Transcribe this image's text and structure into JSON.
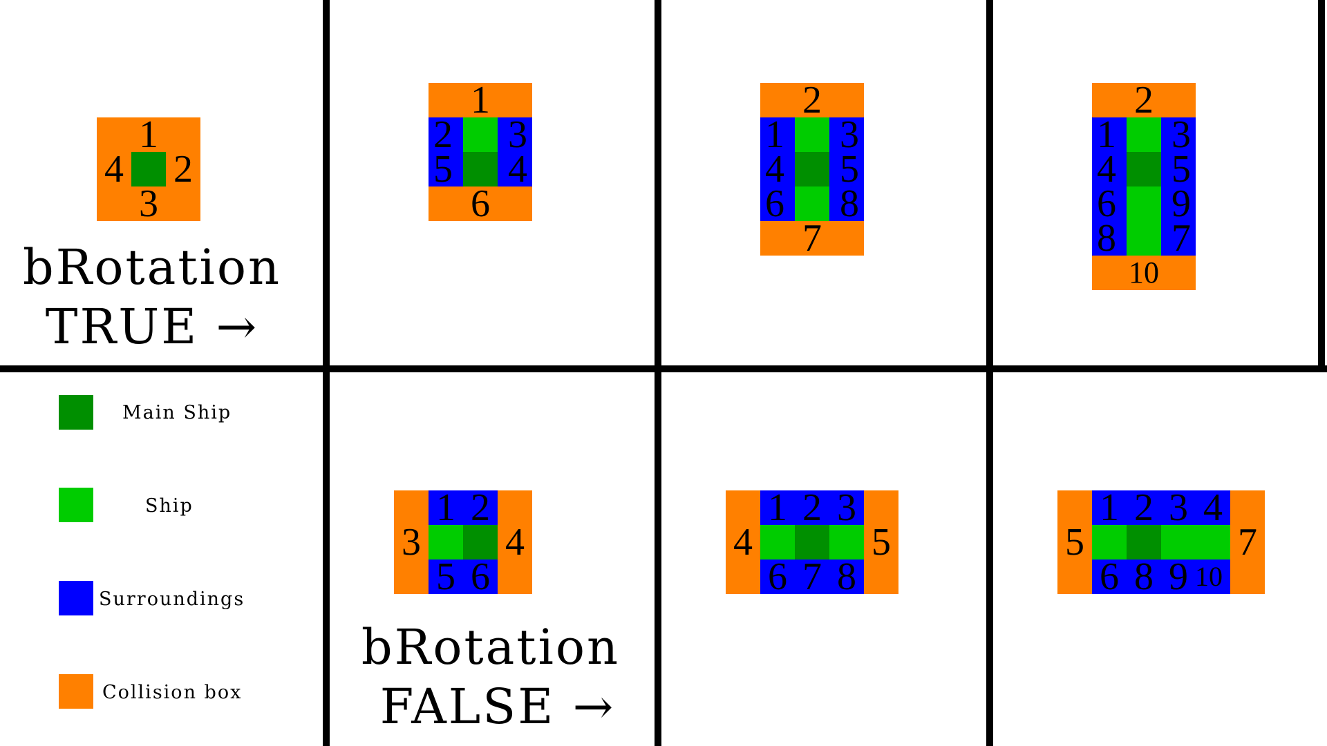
{
  "colors": {
    "main_ship": "#008f00",
    "ship": "#00cc00",
    "surroundings": "#0000ff",
    "collision_box": "#ff8000",
    "grid": "#000000",
    "background": "#ffffff"
  },
  "titles": {
    "rotation_true_line1": "bRotation",
    "rotation_true_line2": "TRUE →",
    "rotation_false_line1": "bRotation",
    "rotation_false_line2": "FALSE →"
  },
  "legend": [
    {
      "label": "Main Ship",
      "color_key": "main_ship",
      "icon": "square-swatch"
    },
    {
      "label": "Ship",
      "color_key": "ship",
      "icon": "square-swatch"
    },
    {
      "label": "Surroundings",
      "color_key": "surroundings",
      "icon": "square-swatch"
    },
    {
      "label": "Collision box",
      "color_key": "collision_box",
      "icon": "square-swatch"
    }
  ],
  "diagrams": [
    {
      "id": "rot-true-size1",
      "rotation": true,
      "ship_size": 1,
      "cells": [
        [
          "O",
          "O",
          "O"
        ],
        [
          "O",
          "M",
          "O"
        ],
        [
          "O",
          "O",
          "O"
        ]
      ],
      "labels": [
        "1",
        "4",
        "2",
        "3"
      ]
    },
    {
      "id": "rot-true-size2",
      "rotation": true,
      "ship_size": 2,
      "cells": [
        [
          "O",
          "O",
          "O"
        ],
        [
          "B",
          "S",
          "B"
        ],
        [
          "B",
          "M",
          "B"
        ],
        [
          "O",
          "O",
          "O"
        ]
      ],
      "labels": [
        "1",
        "2",
        "3",
        "5",
        "4",
        "6"
      ]
    },
    {
      "id": "rot-true-size3",
      "rotation": true,
      "ship_size": 3,
      "cells": [
        [
          "O",
          "O",
          "O"
        ],
        [
          "B",
          "S",
          "B"
        ],
        [
          "B",
          "M",
          "B"
        ],
        [
          "B",
          "S",
          "B"
        ],
        [
          "O",
          "O",
          "O"
        ]
      ],
      "labels": [
        "2",
        "1",
        "3",
        "4",
        "5",
        "6",
        "8",
        "7"
      ]
    },
    {
      "id": "rot-true-size4",
      "rotation": true,
      "ship_size": 4,
      "cells": [
        [
          "O",
          "O",
          "O"
        ],
        [
          "B",
          "S",
          "B"
        ],
        [
          "B",
          "M",
          "B"
        ],
        [
          "B",
          "S",
          "B"
        ],
        [
          "B",
          "S",
          "B"
        ],
        [
          "O",
          "O",
          "O"
        ]
      ],
      "labels": [
        "2",
        "1",
        "3",
        "4",
        "5",
        "6",
        "9",
        "8",
        "7",
        "10"
      ]
    },
    {
      "id": "rot-false-size2",
      "rotation": false,
      "ship_size": 2,
      "cells": [
        [
          "O",
          "B",
          "B",
          "O"
        ],
        [
          "O",
          "S",
          "M",
          "O"
        ],
        [
          "O",
          "B",
          "B",
          "O"
        ]
      ],
      "labels": [
        "1",
        "2",
        "3",
        "4",
        "5",
        "6"
      ]
    },
    {
      "id": "rot-false-size3",
      "rotation": false,
      "ship_size": 3,
      "cells": [
        [
          "O",
          "B",
          "B",
          "B",
          "O"
        ],
        [
          "O",
          "S",
          "M",
          "S",
          "O"
        ],
        [
          "O",
          "B",
          "B",
          "B",
          "O"
        ]
      ],
      "labels": [
        "1",
        "2",
        "3",
        "4",
        "5",
        "6",
        "7",
        "8"
      ]
    },
    {
      "id": "rot-false-size4",
      "rotation": false,
      "ship_size": 4,
      "cells": [
        [
          "O",
          "B",
          "B",
          "B",
          "B",
          "O"
        ],
        [
          "O",
          "S",
          "M",
          "S",
          "S",
          "O"
        ],
        [
          "O",
          "B",
          "B",
          "B",
          "B",
          "O"
        ]
      ],
      "labels": [
        "1",
        "2",
        "3",
        "4",
        "5",
        "7",
        "6",
        "8",
        "9",
        "10"
      ]
    }
  ]
}
